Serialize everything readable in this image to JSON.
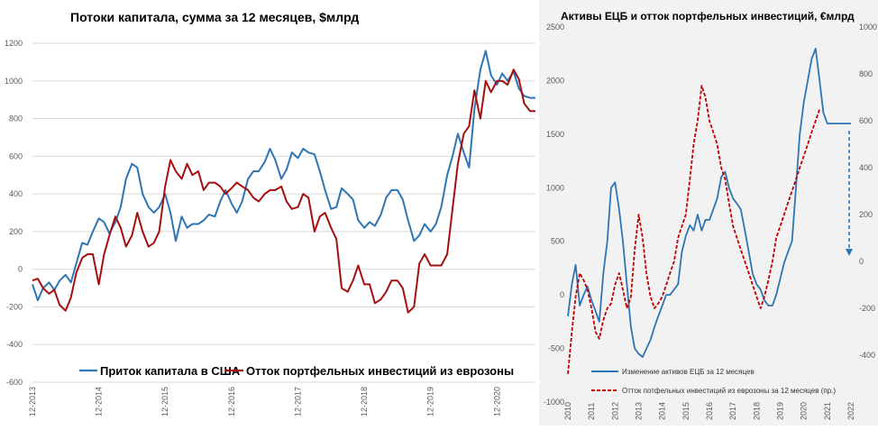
{
  "chart_data": [
    {
      "type": "line",
      "title": "Потоки капитала,  сумма за 12 месяцев, $млрд",
      "ylim": [
        -600,
        1200
      ],
      "yticks": [
        -600,
        -400,
        -200,
        0,
        200,
        400,
        600,
        800,
        1000,
        1200
      ],
      "xlim": [
        2013.92,
        2021.5
      ],
      "xtick_labels": [
        "12-2013",
        "12-2014",
        "12-2015",
        "12-2016",
        "12-2017",
        "12-2018",
        "12-2019",
        "12-2020"
      ],
      "xtick_positions": [
        2013.92,
        2014.92,
        2015.92,
        2016.92,
        2017.92,
        2018.92,
        2019.92,
        2020.92
      ],
      "grid": true,
      "legend_position": "bottom",
      "colors": {
        "blue": "#2e75b6",
        "red": "#a50f0f"
      },
      "series": [
        {
          "name": "Приток капитала в США",
          "color": "#2e75b6",
          "x": [
            2013.92,
            2014.0,
            2014.08,
            2014.17,
            2014.25,
            2014.33,
            2014.42,
            2014.5,
            2014.58,
            2014.67,
            2014.75,
            2014.83,
            2014.92,
            2015.0,
            2015.08,
            2015.17,
            2015.25,
            2015.33,
            2015.42,
            2015.5,
            2015.58,
            2015.67,
            2015.75,
            2015.83,
            2015.92,
            2016.0,
            2016.08,
            2016.17,
            2016.25,
            2016.33,
            2016.42,
            2016.5,
            2016.58,
            2016.67,
            2016.75,
            2016.83,
            2016.92,
            2017.0,
            2017.08,
            2017.17,
            2017.25,
            2017.33,
            2017.42,
            2017.5,
            2017.58,
            2017.67,
            2017.75,
            2017.83,
            2017.92,
            2018.0,
            2018.08,
            2018.17,
            2018.25,
            2018.33,
            2018.42,
            2018.5,
            2018.58,
            2018.67,
            2018.75,
            2018.83,
            2018.92,
            2019.0,
            2019.08,
            2019.17,
            2019.25,
            2019.33,
            2019.42,
            2019.5,
            2019.58,
            2019.67,
            2019.75,
            2019.83,
            2019.92,
            2020.0,
            2020.08,
            2020.17,
            2020.25,
            2020.33,
            2020.42,
            2020.5,
            2020.58,
            2020.67,
            2020.75,
            2020.83,
            2020.92,
            2021.0,
            2021.08,
            2021.17,
            2021.25,
            2021.33,
            2021.42,
            2021.5
          ],
          "y": [
            -80,
            -165,
            -100,
            -70,
            -110,
            -60,
            -30,
            -70,
            30,
            140,
            130,
            200,
            270,
            250,
            190,
            250,
            330,
            480,
            560,
            540,
            400,
            330,
            300,
            330,
            400,
            300,
            150,
            280,
            220,
            240,
            240,
            260,
            290,
            280,
            360,
            420,
            350,
            300,
            360,
            480,
            520,
            520,
            570,
            640,
            580,
            480,
            530,
            620,
            590,
            640,
            620,
            610,
            520,
            420,
            320,
            330,
            430,
            400,
            370,
            260,
            220,
            250,
            230,
            290,
            380,
            420,
            420,
            370,
            260,
            150,
            180,
            240,
            200,
            240,
            330,
            500,
            600,
            720,
            620,
            540,
            850,
            1060,
            1160,
            1030,
            980,
            1040,
            1000,
            1050,
            960,
            920,
            910,
            910
          ]
        },
        {
          "name": "Отток портфельных инвестиций из еврозоны",
          "color": "#a50f0f",
          "x": [
            2013.92,
            2014.0,
            2014.08,
            2014.17,
            2014.25,
            2014.33,
            2014.42,
            2014.5,
            2014.58,
            2014.67,
            2014.75,
            2014.83,
            2014.92,
            2015.0,
            2015.08,
            2015.17,
            2015.25,
            2015.33,
            2015.42,
            2015.5,
            2015.58,
            2015.67,
            2015.75,
            2015.83,
            2015.92,
            2016.0,
            2016.08,
            2016.17,
            2016.25,
            2016.33,
            2016.42,
            2016.5,
            2016.58,
            2016.67,
            2016.75,
            2016.83,
            2016.92,
            2017.0,
            2017.08,
            2017.17,
            2017.25,
            2017.33,
            2017.42,
            2017.5,
            2017.58,
            2017.67,
            2017.75,
            2017.83,
            2017.92,
            2018.0,
            2018.08,
            2018.17,
            2018.25,
            2018.33,
            2018.42,
            2018.5,
            2018.58,
            2018.67,
            2018.75,
            2018.83,
            2018.92,
            2019.0,
            2019.08,
            2019.17,
            2019.25,
            2019.33,
            2019.42,
            2019.5,
            2019.58,
            2019.67,
            2019.75,
            2019.83,
            2019.92,
            2020.0,
            2020.08,
            2020.17,
            2020.25,
            2020.33,
            2020.42,
            2020.5,
            2020.58,
            2020.67,
            2020.75,
            2020.83,
            2020.92,
            2021.0,
            2021.08,
            2021.17,
            2021.25,
            2021.33,
            2021.42,
            2021.5
          ],
          "y": [
            -60,
            -50,
            -100,
            -130,
            -110,
            -190,
            -220,
            -150,
            -20,
            60,
            80,
            80,
            -80,
            80,
            180,
            280,
            220,
            120,
            180,
            300,
            200,
            120,
            140,
            200,
            440,
            580,
            520,
            480,
            560,
            500,
            520,
            420,
            460,
            460,
            440,
            400,
            430,
            460,
            440,
            420,
            380,
            360,
            400,
            420,
            420,
            440,
            360,
            320,
            330,
            400,
            380,
            200,
            280,
            300,
            220,
            160,
            -100,
            -120,
            -60,
            20,
            -80,
            -80,
            -180,
            -160,
            -120,
            -60,
            -60,
            -100,
            -230,
            -200,
            30,
            80,
            20,
            20,
            20,
            80,
            320,
            560,
            720,
            760,
            950,
            800,
            1000,
            940,
            1000,
            1000,
            980,
            1060,
            1010,
            880,
            840,
            840
          ]
        }
      ]
    },
    {
      "type": "line",
      "title": "Активы ЕЦБ и отток портфельных инвестиций, €млрд",
      "ylim_left": [
        -1000,
        2500
      ],
      "yticks_left": [
        -1000,
        -500,
        0,
        500,
        1000,
        1500,
        2000,
        2500
      ],
      "ylim_right": [
        -600,
        1000
      ],
      "yticks_right": [
        -400,
        -200,
        0,
        200,
        400,
        600,
        800,
        1000
      ],
      "xlim": [
        2010,
        2022
      ],
      "xtick_labels": [
        "2010",
        "2011",
        "2012",
        "2013",
        "2014",
        "2015",
        "2016",
        "2017",
        "2018",
        "2019",
        "2020",
        "2021",
        "2022"
      ],
      "grid": false,
      "legend_position": "bottom-left",
      "annotation": "dashed-blue-down-arrow",
      "series": [
        {
          "name": "Изменение активов ЕЦБ за 12 месяцев",
          "axis": "left",
          "color": "#2e75b6",
          "style": "solid",
          "x": [
            2010.0,
            2010.17,
            2010.33,
            2010.5,
            2010.67,
            2010.83,
            2011.0,
            2011.17,
            2011.33,
            2011.5,
            2011.67,
            2011.83,
            2012.0,
            2012.17,
            2012.33,
            2012.5,
            2012.67,
            2012.83,
            2013.0,
            2013.17,
            2013.33,
            2013.5,
            2013.67,
            2013.83,
            2014.0,
            2014.17,
            2014.33,
            2014.5,
            2014.67,
            2014.83,
            2015.0,
            2015.17,
            2015.33,
            2015.5,
            2015.67,
            2015.83,
            2016.0,
            2016.17,
            2016.33,
            2016.5,
            2016.67,
            2016.83,
            2017.0,
            2017.17,
            2017.33,
            2017.5,
            2017.67,
            2017.83,
            2018.0,
            2018.17,
            2018.33,
            2018.5,
            2018.67,
            2018.83,
            2019.0,
            2019.17,
            2019.33,
            2019.5,
            2019.67,
            2019.83,
            2020.0,
            2020.17,
            2020.33,
            2020.5,
            2020.67,
            2020.83,
            2021.0,
            2021.17,
            2021.33,
            2021.5,
            2021.67,
            2021.83,
            2022.0
          ],
          "y": [
            -200,
            100,
            280,
            -100,
            0,
            80,
            -50,
            -150,
            -250,
            200,
            500,
            1000,
            1050,
            800,
            500,
            100,
            -300,
            -500,
            -550,
            -580,
            -500,
            -420,
            -300,
            -200,
            -100,
            0,
            0,
            50,
            100,
            400,
            550,
            650,
            600,
            750,
            600,
            700,
            700,
            800,
            900,
            1100,
            1150,
            1000,
            900,
            850,
            800,
            600,
            400,
            200,
            100,
            50,
            -50,
            -100,
            -100,
            0,
            150,
            300,
            400,
            500,
            1000,
            1500,
            1800,
            2000,
            2200,
            2300,
            2000,
            1700,
            1600,
            1600,
            1600,
            1600,
            1600,
            1600,
            1600
          ]
        },
        {
          "name": "Отток потфельных инвестиций из еврозоны за 12 месяцев (пр.)",
          "axis": "right",
          "color": "#c00000",
          "style": "dashed",
          "x": [
            2010.0,
            2010.17,
            2010.33,
            2010.5,
            2010.67,
            2010.83,
            2011.0,
            2011.17,
            2011.33,
            2011.5,
            2011.67,
            2011.83,
            2012.0,
            2012.17,
            2012.33,
            2012.5,
            2012.67,
            2012.83,
            2013.0,
            2013.17,
            2013.33,
            2013.5,
            2013.67,
            2013.83,
            2014.0,
            2014.17,
            2014.33,
            2014.5,
            2014.67,
            2014.83,
            2015.0,
            2015.17,
            2015.33,
            2015.5,
            2015.67,
            2015.83,
            2016.0,
            2016.17,
            2016.33,
            2016.5,
            2016.67,
            2016.83,
            2017.0,
            2017.17,
            2017.33,
            2017.5,
            2017.67,
            2017.83,
            2018.0,
            2018.17,
            2018.33,
            2018.5,
            2018.67,
            2018.83,
            2019.0,
            2019.17,
            2019.33,
            2019.5,
            2019.67,
            2019.83,
            2020.0,
            2020.17,
            2020.33,
            2020.5,
            2020.67
          ],
          "y": [
            -480,
            -300,
            -150,
            -50,
            -80,
            -120,
            -200,
            -300,
            -330,
            -250,
            -200,
            -180,
            -100,
            -50,
            -120,
            -200,
            -150,
            50,
            200,
            100,
            -50,
            -150,
            -200,
            -180,
            -150,
            -100,
            -50,
            0,
            100,
            150,
            200,
            350,
            500,
            600,
            750,
            700,
            600,
            550,
            500,
            400,
            350,
            250,
            150,
            100,
            50,
            0,
            -50,
            -100,
            -150,
            -200,
            -150,
            -80,
            0,
            100,
            150,
            200,
            250,
            300,
            350,
            400,
            450,
            500,
            550,
            600,
            650
          ]
        }
      ]
    }
  ]
}
